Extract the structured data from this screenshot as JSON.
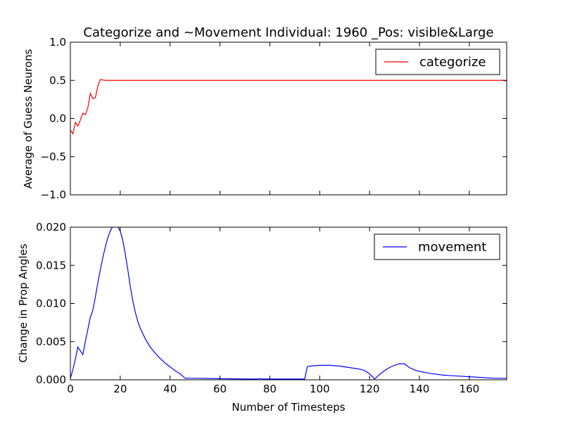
{
  "chart_data": [
    {
      "type": "line",
      "title": "Categorize and ~Movement Individual: 1960 _Pos: visible&Large",
      "xlabel": "",
      "ylabel": "Average of Guess Neurons",
      "xlim": [
        0,
        175
      ],
      "ylim": [
        -1.0,
        1.0
      ],
      "yticks": [
        "−1.0",
        "−0.5",
        "0.0",
        "0.5",
        "1.0"
      ],
      "xticks_labeled": false,
      "grid": false,
      "legend_position": "top-right",
      "series": [
        {
          "name": "categorize",
          "color": "#ff0000",
          "x": [
            0,
            1,
            2,
            3,
            4,
            5,
            6,
            7,
            8,
            9,
            10,
            11,
            12,
            14,
            20,
            40,
            80,
            120,
            160,
            174,
            175
          ],
          "y": [
            -0.15,
            -0.2,
            -0.05,
            -0.1,
            -0.02,
            0.07,
            0.05,
            0.14,
            0.33,
            0.26,
            0.27,
            0.42,
            0.51,
            0.5,
            0.5,
            0.5,
            0.5,
            0.5,
            0.5,
            0.5,
            0.49
          ]
        }
      ]
    },
    {
      "type": "line",
      "title": "",
      "xlabel": "Number of Timesteps",
      "ylabel": "Change in Prop Angles",
      "xlim": [
        0,
        175
      ],
      "ylim": [
        0.0,
        0.02
      ],
      "xticks": [
        "0",
        "20",
        "40",
        "60",
        "80",
        "100",
        "120",
        "140",
        "160"
      ],
      "yticks": [
        "0.000",
        "0.005",
        "0.010",
        "0.015",
        "0.020"
      ],
      "grid": false,
      "legend_position": "top-right",
      "series": [
        {
          "name": "movement",
          "color": "#0000ff",
          "x": [
            0,
            1,
            2,
            3,
            4,
            5,
            6,
            7,
            8,
            9,
            10,
            11,
            12,
            13,
            14,
            15,
            16,
            17,
            18,
            19,
            20,
            21,
            22,
            23,
            24,
            25,
            26,
            27,
            28,
            30,
            32,
            34,
            36,
            38,
            40,
            42,
            44,
            46,
            50,
            60,
            70,
            75,
            76,
            77,
            80,
            90,
            94,
            95,
            96,
            100,
            104,
            108,
            112,
            116,
            118,
            120,
            122,
            124,
            126,
            128,
            130,
            132,
            134,
            136,
            138,
            140,
            145,
            150,
            155,
            160,
            165,
            170,
            175
          ],
          "y": [
            0.0002,
            0.0013,
            0.0027,
            0.0043,
            0.0038,
            0.0033,
            0.005,
            0.0066,
            0.0082,
            0.0091,
            0.0108,
            0.0127,
            0.0144,
            0.016,
            0.0174,
            0.0186,
            0.0195,
            0.0201,
            0.0204,
            0.0201,
            0.0195,
            0.0183,
            0.0165,
            0.0145,
            0.0123,
            0.0104,
            0.0089,
            0.0077,
            0.0068,
            0.0054,
            0.0043,
            0.0035,
            0.0028,
            0.0022,
            0.0017,
            0.0012,
            0.0008,
            0.0002,
            0.0002,
            0.00015,
            0.0001,
            0.0001,
            0.00015,
            0.0001,
            0.0001,
            0.0001,
            0.0001,
            0.0017,
            0.0018,
            0.0019,
            0.0019,
            0.0018,
            0.0016,
            0.0014,
            0.0012,
            0.0008,
            0.0001,
            0.0007,
            0.0012,
            0.0016,
            0.0019,
            0.0021,
            0.0021,
            0.0016,
            0.0013,
            0.0011,
            0.0008,
            0.0006,
            0.0005,
            0.0004,
            0.0003,
            0.0002,
            0.0002
          ]
        }
      ]
    }
  ]
}
